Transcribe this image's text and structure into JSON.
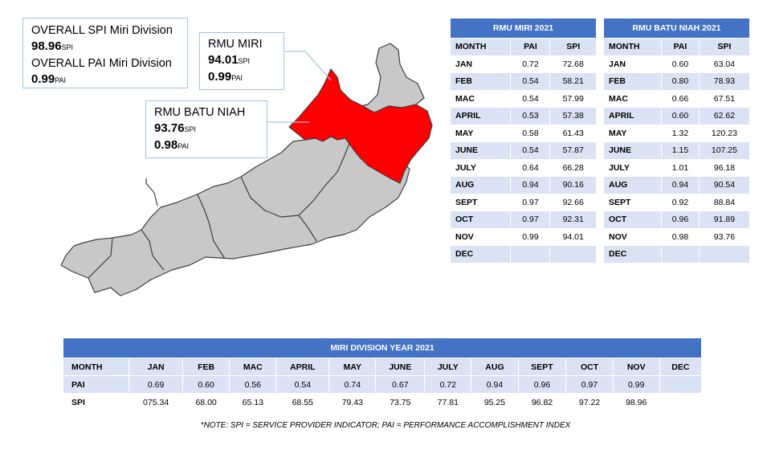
{
  "callouts": {
    "overall": {
      "line1": "OVERALL SPI Miri Division",
      "spi_value": "98.96",
      "spi_unit": "SPI",
      "line2": "OVERALL PAI Miri Division",
      "pai_value": "0.99",
      "pai_unit": "PAI"
    },
    "miri": {
      "title": "RMU MIRI",
      "spi_value": "94.01",
      "spi_unit": "SPI",
      "pai_value": "0.99",
      "pai_unit": "PAI"
    },
    "batu_niah": {
      "title": "RMU BATU NIAH",
      "spi_value": "93.76",
      "spi_unit": "SPI",
      "pai_value": "0.98",
      "pai_unit": "PAI"
    }
  },
  "colors": {
    "highlight": "#ff0000",
    "map_fill": "#c8c8c8",
    "header": "#4472c4",
    "band": "#dae3f3",
    "callout_border": "#9ec3e6"
  },
  "tables": {
    "miri": {
      "title": "RMU MIRI 2021",
      "columns": [
        "MONTH",
        "PAI",
        "SPI"
      ],
      "rows": [
        [
          "JAN",
          "0.72",
          "72.68"
        ],
        [
          "FEB",
          "0.54",
          "58.21"
        ],
        [
          "MAC",
          "0.54",
          "57.99"
        ],
        [
          "APRIL",
          "0.53",
          "57.38"
        ],
        [
          "MAY",
          "0.58",
          "61.43"
        ],
        [
          "JUNE",
          "0.54",
          "57.87"
        ],
        [
          "JULY",
          "0.64",
          "66.28"
        ],
        [
          "AUG",
          "0.94",
          "90.16"
        ],
        [
          "SEPT",
          "0.97",
          "92.66"
        ],
        [
          "OCT",
          "0.97",
          "92.31"
        ],
        [
          "NOV",
          "0.99",
          "94.01"
        ],
        [
          "DEC",
          "",
          ""
        ]
      ]
    },
    "batu_niah": {
      "title": "RMU BATU NIAH 2021",
      "columns": [
        "MONTH",
        "PAI",
        "SPI"
      ],
      "rows": [
        [
          "JAN",
          "0.60",
          "63.04"
        ],
        [
          "FEB",
          "0.80",
          "78.93"
        ],
        [
          "MAC",
          "0.66",
          "67.51"
        ],
        [
          "APRIL",
          "0.60",
          "62.62"
        ],
        [
          "MAY",
          "1.32",
          "120.23"
        ],
        [
          "JUNE",
          "1.15",
          "107.25"
        ],
        [
          "JULY",
          "1.01",
          "96.18"
        ],
        [
          "AUG",
          "0.94",
          "90.54"
        ],
        [
          "SEPT",
          "0.92",
          "88.84"
        ],
        [
          "OCT",
          "0.96",
          "91.89"
        ],
        [
          "NOV",
          "0.98",
          "93.76"
        ],
        [
          "DEC",
          "",
          ""
        ]
      ]
    },
    "division": {
      "title": "MIRI DIVISION YEAR 2021",
      "columns": [
        "MONTH",
        "JAN",
        "FEB",
        "MAC",
        "APRIL",
        "MAY",
        "JUNE",
        "JULY",
        "AUG",
        "SEPT",
        "OCT",
        "NOV",
        "DEC"
      ],
      "rows": [
        [
          "PAI",
          "0.69",
          "0.60",
          "0.56",
          "0.54",
          "0.74",
          "0.67",
          "0.72",
          "0.94",
          "0.96",
          "0.97",
          "0.99",
          ""
        ],
        [
          "SPI",
          "075.34",
          "68.00",
          "65.13",
          "68.55",
          "79.43",
          "73.75",
          "77.81",
          "95.25",
          "96.82",
          "97.22",
          "98.96",
          ""
        ]
      ]
    }
  },
  "note": "*NOTE: SPI = SERVICE PROVIDER INDICATOR; PAI = PERFORMANCE ACCOMPLISHMENT INDEX"
}
